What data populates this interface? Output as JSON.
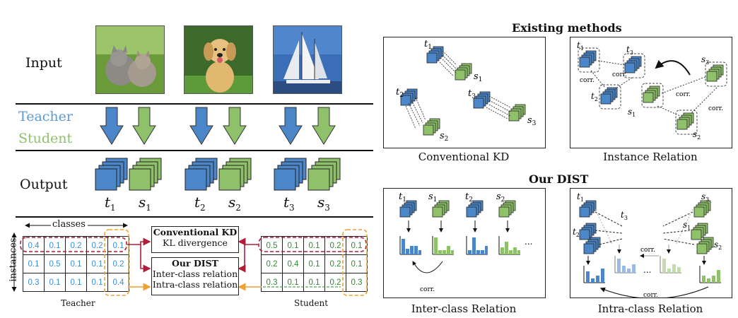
{
  "left": {
    "input_label": "Input",
    "teacher_label": "Teacher",
    "student_label": "Student",
    "output_label": "Output",
    "outputs": [
      {
        "t": "t",
        "t_sub": "1",
        "s": "s",
        "s_sub": "1"
      },
      {
        "t": "t",
        "t_sub": "2",
        "s": "s",
        "s_sub": "2"
      },
      {
        "t": "t",
        "t_sub": "3",
        "s": "s",
        "s_sub": "3"
      }
    ],
    "classes_label": "classes",
    "instances_label": "instances",
    "teacher_matrix": [
      [
        "0.4",
        "0.1",
        "0.2",
        "0.2",
        "0.1"
      ],
      [
        "0.1",
        "0.5",
        "0.1",
        "0.1",
        "0.2"
      ],
      [
        "0.3",
        "0.1",
        "0.1",
        "0.1",
        "0.4"
      ]
    ],
    "student_matrix": [
      [
        "0.5",
        "0.1",
        "0.1",
        "0.2",
        "0.1"
      ],
      [
        "0.2",
        "0.4",
        "0.1",
        "0.2",
        "0.1"
      ],
      [
        "0.3",
        "0.1",
        "0.1",
        "0.2",
        "0.3"
      ]
    ],
    "teacher_caption": "Teacher",
    "student_caption": "Student",
    "conv_kd_title": "Conventional KD",
    "conv_kd_sub": "KL divergence",
    "dist_title": "Our DIST",
    "dist_inter": "Inter-class relation",
    "dist_intra": "Intra-class relation"
  },
  "right": {
    "existing_title": "Existing methods",
    "our_title": "Our DIST",
    "captions": [
      "Conventional KD",
      "Instance Relation",
      "Inter-class Relation",
      "Intra-class Relation"
    ],
    "corr": "corr.",
    "ellipsis": "...",
    "t1": "t",
    "s1": "s",
    "sub1": "1",
    "sub2": "2",
    "sub3": "3"
  },
  "colors": {
    "teacher": "#4a86c8",
    "student": "#8fc16b",
    "red": "#b01e3a",
    "orange": "#f0a030"
  }
}
